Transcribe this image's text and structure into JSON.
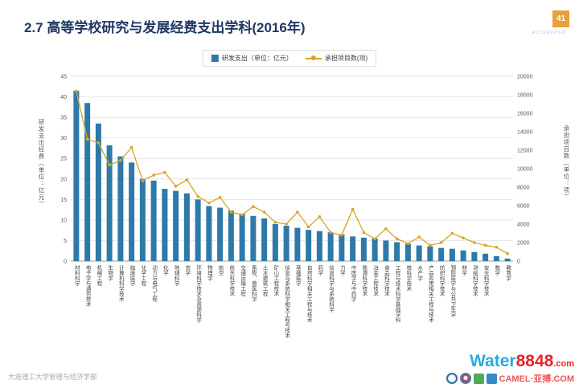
{
  "slide": {
    "title": "2.7  高等学校研究与发展经费支出学科(2016年)",
    "page_number": "41",
    "footer": "大连理工大学管理与经济学部"
  },
  "watermark": {
    "brand_blue": "Water",
    "brand_red": "8848",
    "brand_suffix": ".com",
    "sub_text": "CAMEL·亚搏.COM",
    "accredited": "ACCREDITED"
  },
  "chart_data": {
    "type": "bar",
    "combo": [
      "bar",
      "line"
    ],
    "title": "",
    "grid": true,
    "legend_position": "top",
    "categories": [
      "材料科学",
      "电子学与通信技术",
      "机械工程",
      "生物学",
      "计算机科学技术",
      "临床医学",
      "化学工程",
      "动力与电气工程",
      "化学",
      "地球科学",
      "农学",
      "环境科学技术及资源科学",
      "物理学",
      "航空",
      "航天科学技术",
      "交通运输工程",
      "畜牧、兽医科学",
      "土木建筑工程",
      "矿山工程技术",
      "信息与系统科学相关工程与技术",
      "基础医学",
      "自然科学相关工程与技术",
      "药学",
      "信息科学与系统科学",
      "力学",
      "中医学与中药学",
      "能源科学技术",
      "冶金工程技术",
      "食品科学技术",
      "工程与技术科学基础学科",
      "核科学技术",
      "水产学",
      "产品应用相关工程与技术",
      "纺织科学技术",
      "预防医学与公共卫生学",
      "林学",
      "测绘科学技术",
      "安全科学技术",
      "数学",
      "教育学"
    ],
    "series": [
      {
        "name": "研发支出（单位：亿元）",
        "type": "bar",
        "axis": "left",
        "color": "#2E79A9",
        "values": [
          41.5,
          38.5,
          33.5,
          28.2,
          25.5,
          24,
          20,
          19.6,
          17.6,
          17.1,
          16.5,
          15,
          13.4,
          13,
          12.3,
          11.5,
          11,
          10.4,
          9,
          8.6,
          8.1,
          7.6,
          7.3,
          7,
          6.5,
          6,
          5.7,
          5.5,
          5,
          4.6,
          4.2,
          3.8,
          3.6,
          3.2,
          3,
          2.6,
          2.2,
          1.8,
          1.2,
          0.6
        ]
      },
      {
        "name": "承担项目数(项)",
        "type": "line",
        "axis": "right",
        "color": "#D9A426",
        "values": [
          18400,
          13200,
          12800,
          10400,
          10900,
          12300,
          8700,
          9300,
          9600,
          8100,
          8800,
          7000,
          6300,
          6900,
          5300,
          5000,
          5900,
          5300,
          4200,
          4000,
          5300,
          3700,
          4800,
          3100,
          2800,
          5600,
          3100,
          2400,
          3500,
          2400,
          1900,
          2600,
          1700,
          2000,
          3000,
          2500,
          2000,
          1700,
          1500,
          800
        ]
      }
    ],
    "left_axis": {
      "title": "研发支出经费（单位：亿元）",
      "min": 0,
      "max": 45,
      "step": 5
    },
    "right_axis": {
      "title": "承担项目数（单位：项）",
      "min": 0,
      "max": 20000,
      "step": 2000
    }
  }
}
